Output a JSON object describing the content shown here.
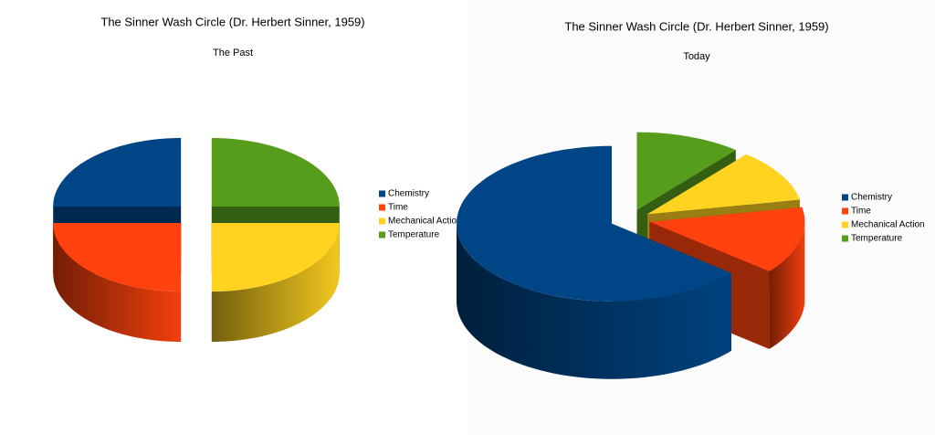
{
  "chart_data": [
    {
      "type": "pie",
      "title": "The Sinner Wash Circle (Dr. Herbert Sinner, 1959)",
      "subtitle": "The Past",
      "categories": [
        "Chemistry",
        "Time",
        "Mechanical Action",
        "Temperature"
      ],
      "values": [
        25,
        25,
        25,
        25
      ],
      "colors": [
        "#004586",
        "#ff420e",
        "#ffd320",
        "#579d1c"
      ]
    },
    {
      "type": "pie",
      "title": "The Sinner Wash Circle (Dr. Herbert Sinner, 1959)",
      "subtitle": "Today",
      "categories": [
        "Chemistry",
        "Time",
        "Mechanical Action",
        "Temperature"
      ],
      "values": [
        64,
        14,
        11,
        11
      ],
      "colors": [
        "#004586",
        "#ff420e",
        "#ffd320",
        "#579d1c"
      ]
    }
  ]
}
